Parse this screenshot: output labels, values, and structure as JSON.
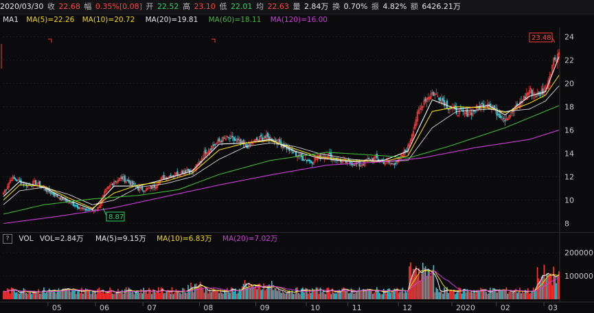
{
  "header": {
    "date": "2020/03/30",
    "close_label": "收",
    "close": "22.68",
    "change_label": "幅",
    "change": "0.35%[0.08]",
    "open_label": "开",
    "open": "22.52",
    "high_label": "高",
    "high": "23.10",
    "low_label": "低",
    "low": "22.01",
    "avg_label": "均",
    "avg": "22.63",
    "volume_label": "量",
    "volume": "2.84万",
    "turnover_label": "换",
    "turnover": "0.70%",
    "amplitude_label": "振",
    "amplitude": "4.82%",
    "amount_label": "额",
    "amount": "6426.21万"
  },
  "ma_legend": {
    "name": "MA1",
    "ma5": "MA(5)=22.26",
    "ma10": "MA(10)=20.72",
    "ma20": "MA(20)=19.81",
    "ma60": "MA(60)=18.11",
    "ma120": "MA(120)=16.00"
  },
  "vol_legend": {
    "help": "?",
    "name": "VOL",
    "vol": "VOL=2.84万",
    "ma5": "MA(5)=9.15万",
    "ma10": "MA(10)=6.83万",
    "ma20": "MA(20)=7.02万"
  },
  "colors": {
    "up": "#ff3b3b",
    "down": "#37c8d8",
    "ma5": "#ffffff",
    "ma10": "#f5d90a",
    "ma20": "#ffffff",
    "ma60": "#43b83a",
    "ma120": "#d23be0",
    "grid": "#2a2a2e",
    "axis_text": "#c8c8c8"
  },
  "chart_data": [
    {
      "type": "line",
      "title": "Candlestick price chart",
      "ylim": [
        7.5,
        24.8
      ],
      "yticks": [
        8,
        10,
        12,
        14,
        16,
        18,
        20,
        22,
        24
      ],
      "x_labels": [
        "05",
        "06",
        "07",
        "08",
        "09",
        "10",
        "11",
        "12",
        "2020",
        "02",
        "03"
      ],
      "annotations": {
        "max_label": "23.48",
        "min_label": "8.87"
      },
      "price_points": [
        [
          0,
          10.6
        ],
        [
          6,
          11.9
        ],
        [
          12,
          11.6
        ],
        [
          18,
          11.3
        ],
        [
          24,
          11.5
        ],
        [
          30,
          11.0
        ],
        [
          36,
          10.6
        ],
        [
          42,
          10.2
        ],
        [
          48,
          9.9
        ],
        [
          54,
          9.5
        ],
        [
          60,
          9.2
        ],
        [
          66,
          9.1
        ],
        [
          70,
          9.3
        ],
        [
          76,
          10.8
        ],
        [
          82,
          11.6
        ],
        [
          88,
          11.9
        ],
        [
          94,
          11.5
        ],
        [
          100,
          11.0
        ],
        [
          106,
          10.9
        ],
        [
          112,
          11.2
        ],
        [
          118,
          11.9
        ],
        [
          124,
          12.1
        ],
        [
          130,
          12.3
        ],
        [
          136,
          12.6
        ],
        [
          140,
          12.4
        ],
        [
          144,
          13.0
        ],
        [
          150,
          14.2
        ],
        [
          156,
          14.7
        ],
        [
          162,
          15.2
        ],
        [
          168,
          15.3
        ],
        [
          174,
          15.0
        ],
        [
          180,
          14.6
        ],
        [
          186,
          15.0
        ],
        [
          192,
          15.4
        ],
        [
          198,
          15.3
        ],
        [
          204,
          15.0
        ],
        [
          210,
          14.5
        ],
        [
          216,
          14.0
        ],
        [
          222,
          13.6
        ],
        [
          228,
          13.3
        ],
        [
          234,
          13.7
        ],
        [
          240,
          13.9
        ],
        [
          246,
          13.6
        ],
        [
          252,
          13.3
        ],
        [
          258,
          13.2
        ],
        [
          264,
          13.0
        ],
        [
          270,
          13.4
        ],
        [
          276,
          13.6
        ],
        [
          282,
          13.3
        ],
        [
          288,
          13.1
        ],
        [
          294,
          13.5
        ],
        [
          300,
          14.5
        ],
        [
          306,
          17.0
        ],
        [
          312,
          18.6
        ],
        [
          318,
          19.2
        ],
        [
          324,
          18.8
        ],
        [
          330,
          18.0
        ],
        [
          336,
          17.6
        ],
        [
          342,
          17.4
        ],
        [
          348,
          17.6
        ],
        [
          354,
          18.1
        ],
        [
          360,
          18.4
        ],
        [
          366,
          17.5
        ],
        [
          372,
          17.0
        ],
        [
          378,
          17.6
        ],
        [
          384,
          18.4
        ],
        [
          390,
          19.4
        ],
        [
          396,
          19.0
        ],
        [
          402,
          19.5
        ],
        [
          408,
          22.0
        ],
        [
          412,
          22.7
        ]
      ],
      "ma_series": {
        "ma5": [
          [
            0,
            10.3
          ],
          [
            12,
            11.6
          ],
          [
            30,
            11.1
          ],
          [
            48,
            10.0
          ],
          [
            66,
            9.2
          ],
          [
            82,
            11.2
          ],
          [
            100,
            11.2
          ],
          [
            120,
            11.8
          ],
          [
            140,
            12.5
          ],
          [
            160,
            14.8
          ],
          [
            180,
            14.9
          ],
          [
            198,
            15.2
          ],
          [
            216,
            14.2
          ],
          [
            234,
            13.6
          ],
          [
            258,
            13.3
          ],
          [
            282,
            13.4
          ],
          [
            300,
            14.2
          ],
          [
            318,
            18.6
          ],
          [
            336,
            17.8
          ],
          [
            360,
            18.1
          ],
          [
            372,
            17.3
          ],
          [
            390,
            18.9
          ],
          [
            402,
            19.3
          ],
          [
            412,
            22.3
          ]
        ],
        "ma10": [
          [
            0,
            10.0
          ],
          [
            12,
            11.3
          ],
          [
            30,
            11.2
          ],
          [
            48,
            10.2
          ],
          [
            66,
            9.3
          ],
          [
            82,
            10.6
          ],
          [
            100,
            11.3
          ],
          [
            120,
            11.6
          ],
          [
            140,
            12.3
          ],
          [
            160,
            14.3
          ],
          [
            180,
            14.9
          ],
          [
            198,
            15.1
          ],
          [
            216,
            14.4
          ],
          [
            234,
            13.7
          ],
          [
            258,
            13.4
          ],
          [
            282,
            13.3
          ],
          [
            300,
            13.8
          ],
          [
            318,
            17.6
          ],
          [
            336,
            18.0
          ],
          [
            360,
            17.9
          ],
          [
            372,
            17.5
          ],
          [
            390,
            18.3
          ],
          [
            402,
            19.0
          ],
          [
            412,
            20.7
          ]
        ],
        "ma20": [
          [
            0,
            9.6
          ],
          [
            12,
            10.8
          ],
          [
            30,
            11.1
          ],
          [
            48,
            10.5
          ],
          [
            66,
            9.6
          ],
          [
            82,
            10.0
          ],
          [
            100,
            11.1
          ],
          [
            120,
            11.4
          ],
          [
            140,
            12.0
          ],
          [
            160,
            13.5
          ],
          [
            180,
            14.6
          ],
          [
            198,
            14.9
          ],
          [
            216,
            14.6
          ],
          [
            234,
            14.0
          ],
          [
            258,
            13.5
          ],
          [
            282,
            13.3
          ],
          [
            300,
            13.4
          ],
          [
            318,
            16.2
          ],
          [
            336,
            17.6
          ],
          [
            360,
            17.8
          ],
          [
            372,
            17.6
          ],
          [
            390,
            17.8
          ],
          [
            402,
            18.5
          ],
          [
            412,
            19.8
          ]
        ],
        "ma60": [
          [
            0,
            8.8
          ],
          [
            30,
            9.6
          ],
          [
            66,
            10.1
          ],
          [
            100,
            10.4
          ],
          [
            130,
            10.9
          ],
          [
            160,
            12.2
          ],
          [
            198,
            13.4
          ],
          [
            240,
            14.1
          ],
          [
            282,
            13.8
          ],
          [
            300,
            13.6
          ],
          [
            330,
            14.6
          ],
          [
            372,
            16.2
          ],
          [
            412,
            18.1
          ]
        ],
        "ma120": [
          [
            0,
            8.0
          ],
          [
            40,
            8.6
          ],
          [
            80,
            9.3
          ],
          [
            120,
            10.3
          ],
          [
            160,
            11.3
          ],
          [
            200,
            12.2
          ],
          [
            240,
            13.0
          ],
          [
            282,
            13.3
          ],
          [
            310,
            13.6
          ],
          [
            350,
            14.5
          ],
          [
            390,
            15.2
          ],
          [
            412,
            16.0
          ]
        ]
      }
    },
    {
      "type": "bar",
      "title": "Volume",
      "ylim": [
        0,
        230000
      ],
      "yticks_labels": [
        "200000",
        "100000"
      ],
      "yticks": [
        200000,
        100000
      ],
      "x_labels": [
        "05",
        "06",
        "07",
        "08",
        "09",
        "10",
        "11",
        "12",
        "2020",
        "02",
        "03"
      ]
    }
  ]
}
